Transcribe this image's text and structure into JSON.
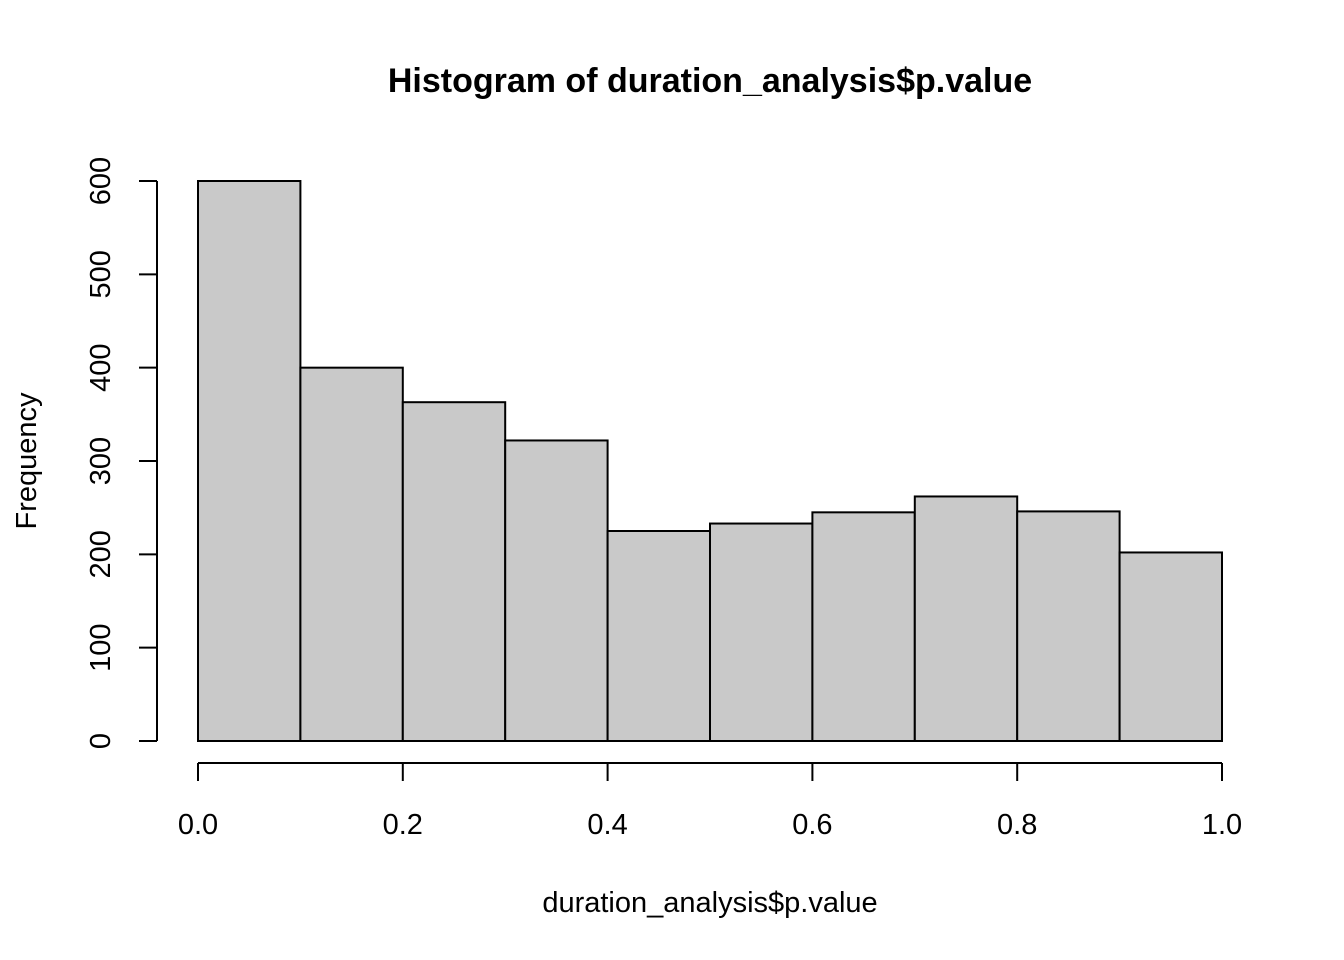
{
  "chart_data": {
    "type": "bar",
    "title": "Histogram of duration_analysis$p.value",
    "xlabel": "duration_analysis$p.value",
    "ylabel": "Frequency",
    "bins": [
      {
        "start": 0.0,
        "end": 0.1,
        "count": 600
      },
      {
        "start": 0.1,
        "end": 0.2,
        "count": 400
      },
      {
        "start": 0.2,
        "end": 0.3,
        "count": 363
      },
      {
        "start": 0.3,
        "end": 0.4,
        "count": 322
      },
      {
        "start": 0.4,
        "end": 0.5,
        "count": 225
      },
      {
        "start": 0.5,
        "end": 0.6,
        "count": 233
      },
      {
        "start": 0.6,
        "end": 0.7,
        "count": 245
      },
      {
        "start": 0.7,
        "end": 0.8,
        "count": 262
      },
      {
        "start": 0.8,
        "end": 0.9,
        "count": 246
      },
      {
        "start": 0.9,
        "end": 1.0,
        "count": 202
      }
    ],
    "xlim": [
      0,
      1
    ],
    "ylim": [
      0,
      600
    ],
    "xticks": [
      0.0,
      0.2,
      0.4,
      0.6,
      0.8,
      1.0
    ],
    "xtick_labels": [
      "0.0",
      "0.2",
      "0.4",
      "0.6",
      "0.8",
      "1.0"
    ],
    "yticks": [
      0,
      100,
      200,
      300,
      400,
      500,
      600
    ],
    "ytick_labels": [
      "0",
      "100",
      "200",
      "300",
      "400",
      "500",
      "600"
    ],
    "bar_color": "#c9c9c9",
    "edge_color": "#000000",
    "grid": false,
    "legend": "none"
  }
}
